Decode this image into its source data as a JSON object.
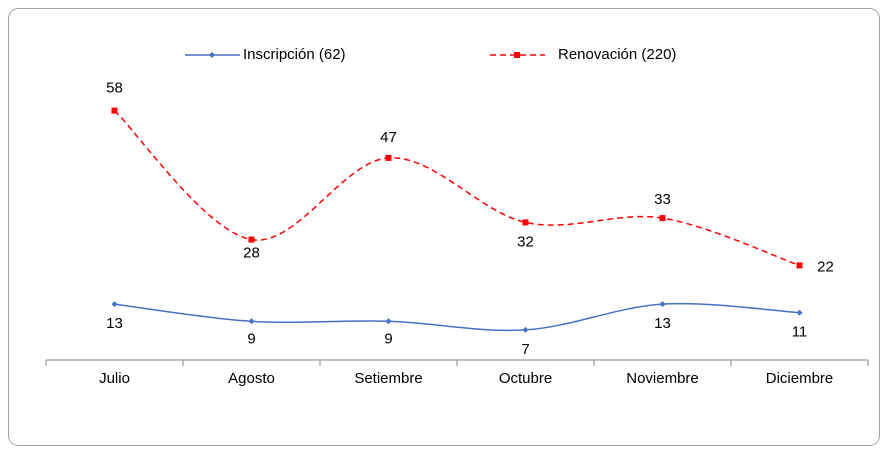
{
  "chart_data": {
    "type": "line",
    "categories": [
      "Julio",
      "Agosto",
      "Setiembre",
      "Octubre",
      "Noviembre",
      "Diciembre"
    ],
    "series": [
      {
        "name": "Inscripción (62)",
        "color": "#4472c4",
        "values": [
          13,
          9,
          9,
          7,
          13,
          11
        ]
      },
      {
        "name": "Renovación (220)",
        "color": "#ff0000",
        "values": [
          58,
          28,
          47,
          32,
          33,
          22
        ]
      }
    ],
    "ylim": [
      0,
      70
    ],
    "legend": "top",
    "smooth": true
  }
}
